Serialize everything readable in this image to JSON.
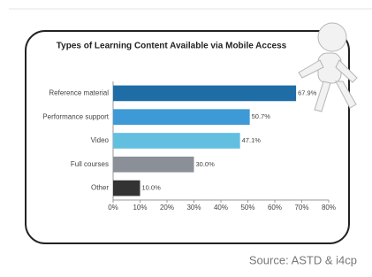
{
  "chart_data": {
    "type": "bar",
    "orientation": "horizontal",
    "title": "Types of Learning Content Available via Mobile Access",
    "categories": [
      "Reference material",
      "Performance support",
      "Video",
      "Full courses",
      "Other"
    ],
    "values": [
      67.9,
      50.7,
      47.1,
      30.0,
      10.0
    ],
    "value_labels": [
      "67.9%",
      "50.7%",
      "47.1%",
      "30.0%",
      "10.0%"
    ],
    "colors": [
      "#1f6da6",
      "#3d9ad6",
      "#63bfe0",
      "#8b8f98",
      "#333333"
    ],
    "xlim": [
      0,
      80
    ],
    "xticks": [
      {
        "value": 0,
        "label": "0%"
      },
      {
        "value": 10,
        "label": "10%"
      },
      {
        "value": 20,
        "label": "20%"
      },
      {
        "value": 30,
        "label": "30%"
      },
      {
        "value": 40,
        "label": "40%"
      },
      {
        "value": 50,
        "label": "50%"
      },
      {
        "value": 60,
        "label": "60%"
      },
      {
        "value": 70,
        "label": "70%"
      },
      {
        "value": 80,
        "label": "80%"
      }
    ],
    "grid": false,
    "source": "Source: ASTD & i4cp"
  }
}
